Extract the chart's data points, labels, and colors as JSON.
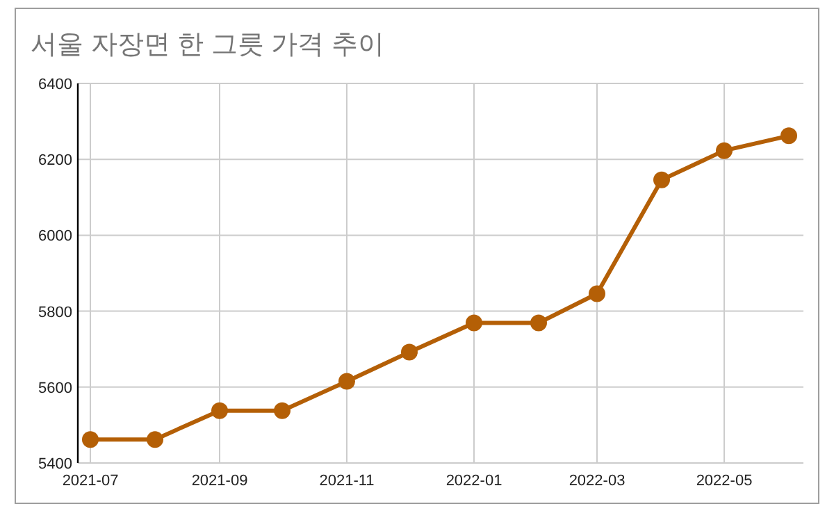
{
  "chart_data": {
    "type": "line",
    "title": "서울 자장면 한 그릇 가격 추이",
    "x": [
      "2021-07",
      "2021-08",
      "2021-09",
      "2021-10",
      "2021-11",
      "2021-12",
      "2022-01",
      "2022-02",
      "2022-03",
      "2022-04",
      "2022-05",
      "2022-06"
    ],
    "series": [
      {
        "color": "#b45f06",
        "values": [
          5462,
          5462,
          5538,
          5538,
          5615,
          5692,
          5769,
          5769,
          5846,
          6146,
          6223,
          6262
        ]
      }
    ],
    "xlim": [
      "2021-06-25",
      "2022-06-08"
    ],
    "xticks": [
      "2021-07",
      "2021-09",
      "2021-11",
      "2022-01",
      "2022-03",
      "2022-05"
    ],
    "ylim": [
      5400,
      6400
    ],
    "yticks": [
      5400,
      5600,
      5800,
      6000,
      6200,
      6400
    ],
    "grid": true,
    "marker": "circle",
    "line_style": "solid"
  }
}
